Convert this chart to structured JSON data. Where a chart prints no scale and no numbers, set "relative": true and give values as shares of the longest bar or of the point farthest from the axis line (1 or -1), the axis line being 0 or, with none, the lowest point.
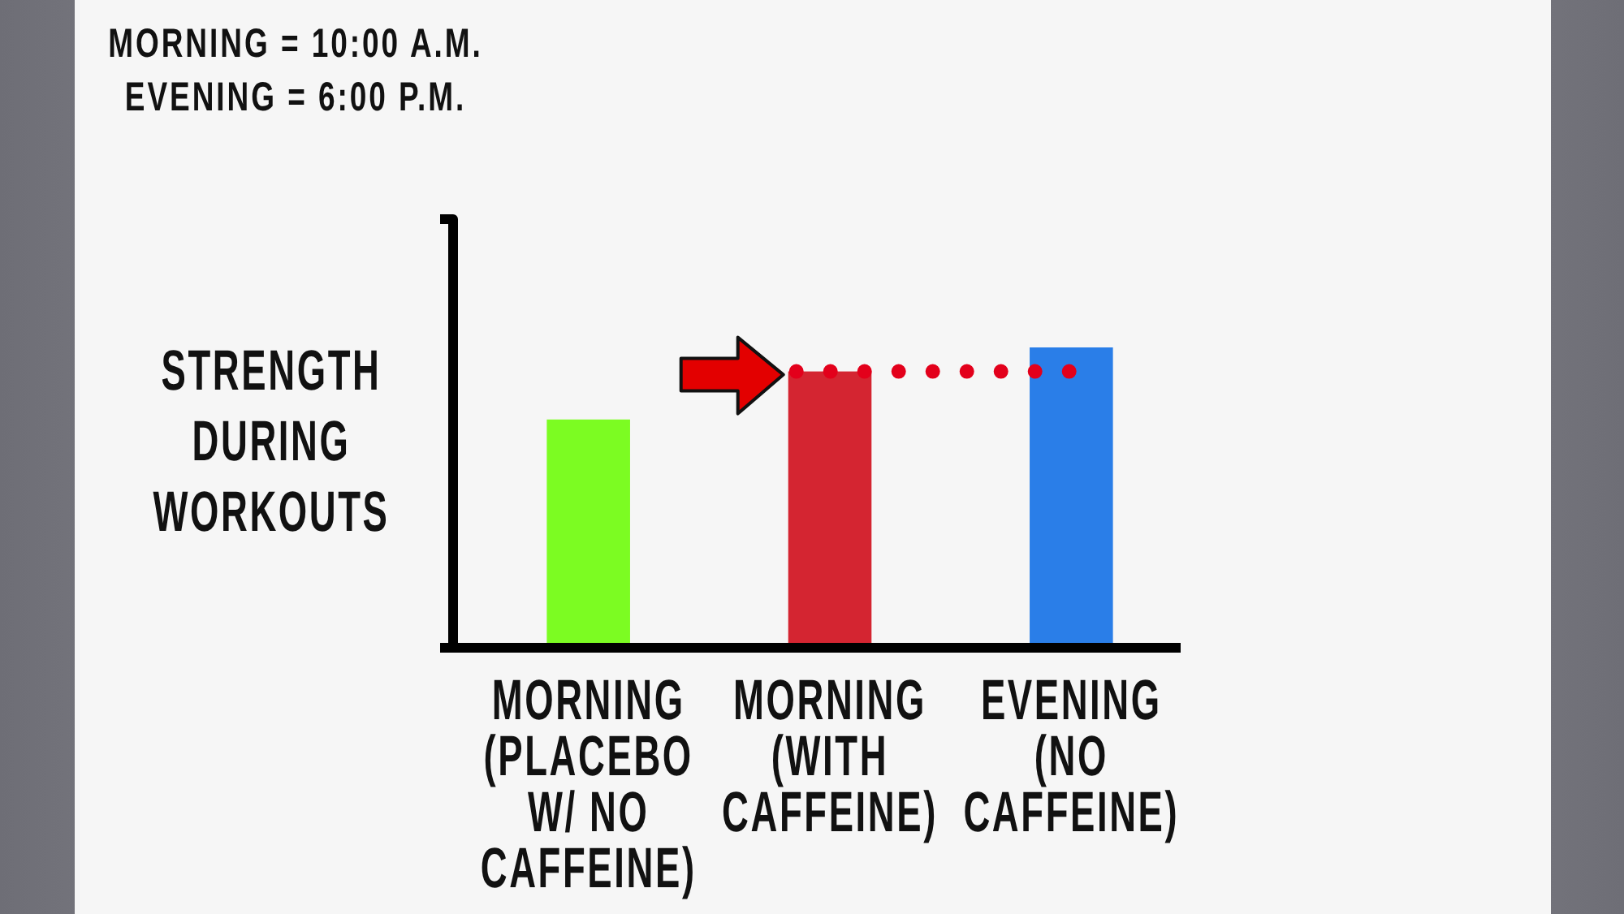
{
  "chart_data": {
    "type": "bar",
    "relative": true,
    "categories": [
      "MORNING\n(PLACEBO\nW/ NO\nCAFFEINE)",
      "MORNING\n(WITH\nCAFFEINE)",
      "EVENING\n(NO\nCAFFEINE)"
    ],
    "values": [
      0.76,
      0.92,
      1
    ],
    "colors": [
      "#7cfc22",
      "#d42531",
      "#2a7ee8"
    ],
    "ylabel": "STRENGTH\nDURING\nWORKOUTS",
    "annotations": [
      "MORNING = 10:00 A.M.\nEVENING = 6:00 P.M."
    ],
    "ref_lines": [
      {
        "axis": "y",
        "value": 0.92,
        "color": "#e3001b",
        "line_style": "dotted"
      }
    ]
  }
}
